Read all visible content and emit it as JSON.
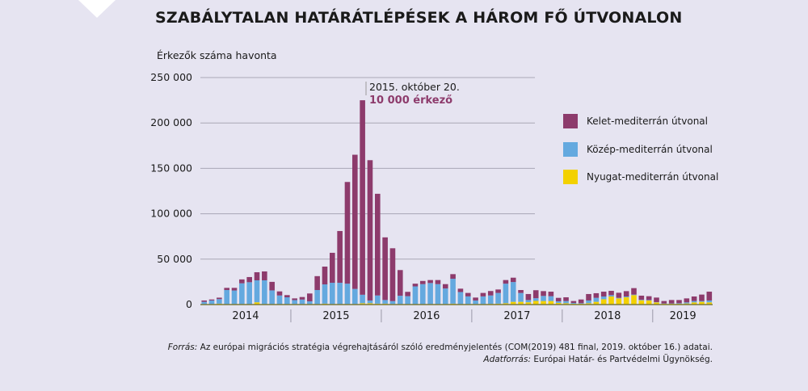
{
  "title": "SZABÁLYTALAN HATÁRÁTLÉPÉSEK A HÁROM FŐ ÚTVONALON",
  "footer": {
    "source_label": "Forrás:",
    "source_text": " Az európai migrációs stratégia végrehajtásáról szóló eredményjelentés (COM(2019) 481 final, 2019. október 16.) adatai.",
    "data_source_label": "Adatforrás:",
    "data_source_text": " Európai Határ- és Partvédelmi Ügynökség."
  },
  "chart_data": {
    "type": "bar",
    "stacked": true,
    "title": "SZABÁLYTALAN HATÁRÁTLÉPÉSEK A HÁROM FŐ ÚTVONALON",
    "ylabel": "Érkezők száma havonta",
    "ylim": [
      0,
      250000
    ],
    "yticks": [
      0,
      50000,
      100000,
      150000,
      200000,
      250000
    ],
    "ytick_labels": [
      "0",
      "50 000",
      "100 000",
      "150 000",
      "200 000",
      "250 000"
    ],
    "grid": true,
    "legend_position": "right",
    "x_period": "monthly, 2014-01 to 2019-08",
    "year_labels": [
      "2014",
      "2015",
      "2016",
      "2017",
      "2018",
      "2019"
    ],
    "annotation": {
      "line1": "2015. október 20.",
      "line2": "10 000 érkező",
      "month": "2015-10"
    },
    "series": [
      {
        "name": "Nyugat-mediterrán útvonal",
        "color": "#f3d100",
        "values": [
          300,
          300,
          1000,
          300,
          500,
          500,
          300,
          2500,
          500,
          300,
          300,
          300,
          500,
          300,
          300,
          300,
          1000,
          500,
          500,
          500,
          500,
          1500,
          1500,
          1000,
          1000,
          500,
          500,
          300,
          300,
          300,
          500,
          500,
          500,
          1000,
          500,
          500,
          500,
          500,
          800,
          1000,
          1500,
          3000,
          3000,
          2500,
          4000,
          3900,
          3900,
          1800,
          1500,
          900,
          900,
          1500,
          3000,
          5900,
          8900,
          6800,
          8000,
          10400,
          4700,
          4500,
          2400,
          900,
          900,
          900,
          1200,
          2400,
          3000,
          2400
        ]
      },
      {
        "name": "Közép-mediterrán útvonal",
        "color": "#64a9df",
        "values": [
          2700,
          4200,
          5000,
          15700,
          15000,
          22900,
          24300,
          24200,
          26200,
          15300,
          9700,
          7700,
          4400,
          5200,
          3300,
          15700,
          21200,
          23500,
          23500,
          22500,
          16700,
          9300,
          3000,
          9000,
          4000,
          3300,
          9200,
          8900,
          19700,
          22200,
          23200,
          22000,
          17200,
          27400,
          13300,
          8500,
          4000,
          8500,
          9200,
          11800,
          21500,
          21800,
          9800,
          2500,
          3000,
          5600,
          5300,
          1800,
          2400,
          900,
          600,
          3000,
          4400,
          3000,
          1500,
          600,
          900,
          600,
          600,
          500,
          300,
          300,
          300,
          600,
          1200,
          1500,
          900,
          2100
        ]
      },
      {
        "name": "Kelet-mediterrán útvonal",
        "color": "#8d3b6c",
        "values": [
          1500,
          1100,
          1600,
          2400,
          2900,
          4300,
          5700,
          8900,
          9800,
          9400,
          4500,
          2400,
          1900,
          2800,
          8600,
          15300,
          19600,
          33000,
          57000,
          112000,
          147800,
          214200,
          154500,
          112000,
          69000,
          58200,
          28300,
          4800,
          3000,
          3500,
          3300,
          4500,
          4800,
          5100,
          3700,
          3800,
          3200,
          3800,
          4900,
          3800,
          4000,
          4800,
          3200,
          6600,
          8800,
          5300,
          5000,
          3800,
          4100,
          2100,
          4100,
          7100,
          5100,
          5300,
          4700,
          5600,
          5900,
          7100,
          4500,
          4200,
          5000,
          2700,
          3800,
          3500,
          4400,
          5000,
          7100,
          9700
        ]
      }
    ]
  }
}
